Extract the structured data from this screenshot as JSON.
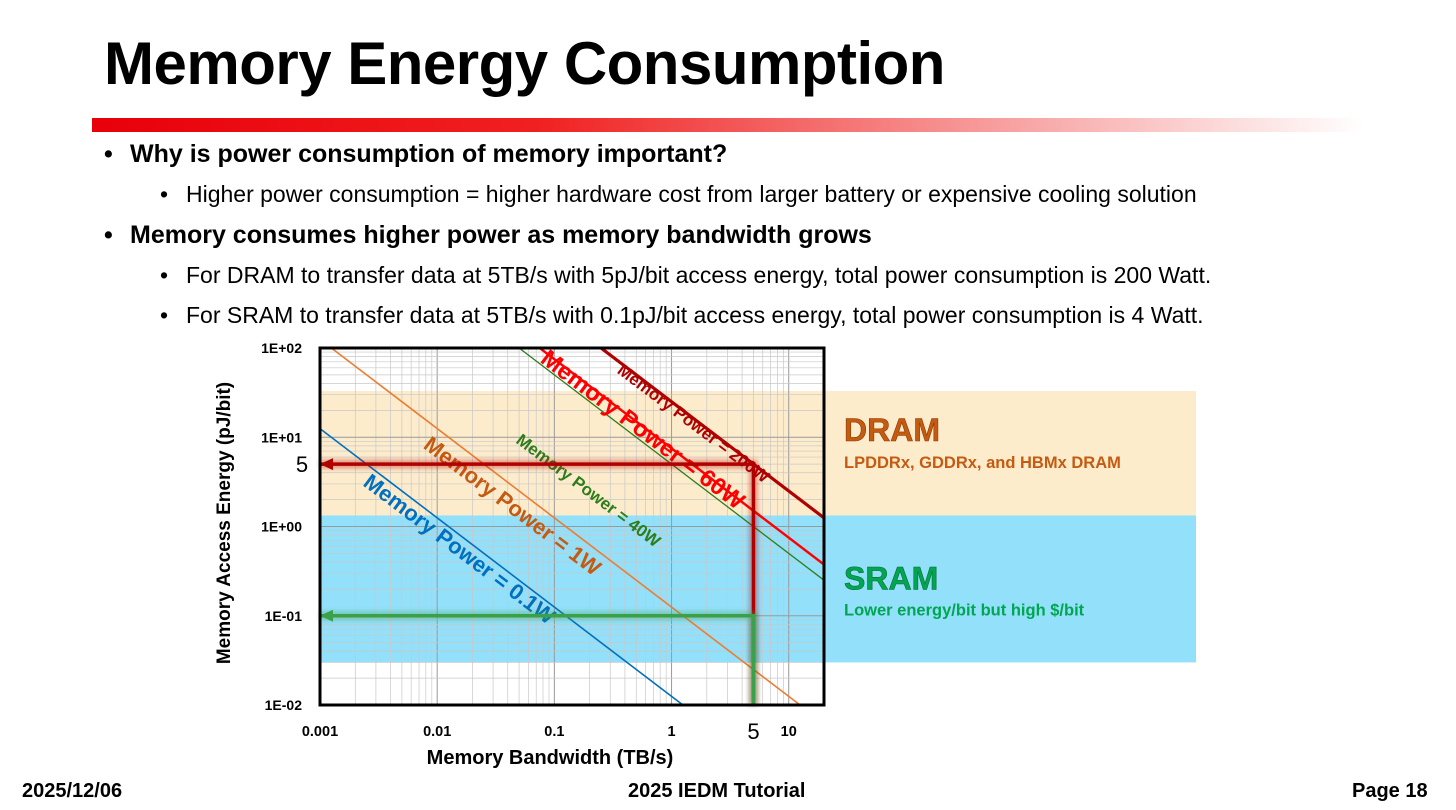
{
  "slide": {
    "title": "Memory Energy Consumption",
    "bullets": [
      {
        "text": "Why is power consumption of memory important?",
        "level": 1
      },
      {
        "text": "Higher power consumption = higher hardware cost from larger battery or expensive cooling solution",
        "level": 2
      },
      {
        "text": "Memory consumes higher power as memory bandwidth grows",
        "level": 1
      },
      {
        "text": "For DRAM to transfer data at 5TB/s with 5pJ/bit access energy, total power consumption is 200 Watt.",
        "level": 2
      },
      {
        "text": "For SRAM to transfer data at 5TB/s with 0.1pJ/bit access energy, total power consumption is 4 Watt.",
        "level": 2
      }
    ]
  },
  "footer": {
    "date": "2025/12/06",
    "event": "2025 IEDM Tutorial",
    "page": "Page 18"
  },
  "chart_data": {
    "type": "line",
    "x_scale": "log",
    "y_scale": "log",
    "xlabel": "Memory Bandwidth (TB/s)",
    "ylabel": "Memory Access Energy (pJ/bit)",
    "xlim": [
      0.001,
      20
    ],
    "ylim": [
      0.01,
      100
    ],
    "x_ticks": [
      {
        "value": 0.001,
        "label": "0.001"
      },
      {
        "value": 0.01,
        "label": "0.01"
      },
      {
        "value": 0.1,
        "label": "0.1"
      },
      {
        "value": 1,
        "label": "1"
      },
      {
        "value": 10,
        "label": "10"
      }
    ],
    "y_ticks": [
      {
        "value": 100,
        "label": "1E+02"
      },
      {
        "value": 10,
        "label": "1E+01"
      },
      {
        "value": 1,
        "label": "1E+00"
      },
      {
        "value": 0.1,
        "label": "1E-01"
      },
      {
        "value": 0.01,
        "label": "1E-02"
      }
    ],
    "grid": true,
    "series": [
      {
        "name": "Memory Power = 0.1W",
        "color": "#0070c0",
        "label_color": "#0070c0",
        "points": [
          [
            0.001,
            12.5
          ],
          [
            1.25,
            0.01
          ]
        ]
      },
      {
        "name": "Memory Power = 1W",
        "color": "#ed7d31",
        "label_color": "#c55a11",
        "points": [
          [
            0.001,
            125
          ],
          [
            12.5,
            0.01
          ]
        ]
      },
      {
        "name": "Memory Power = 40W",
        "color": "#2e7d1a",
        "label_color": "#2e7d1a",
        "points": [
          [
            0.05,
            100
          ],
          [
            20,
            0.25
          ]
        ]
      },
      {
        "name": "Memory Power = 60W",
        "color": "#ff0000",
        "label_color": "#ff0000",
        "points": [
          [
            0.075,
            100
          ],
          [
            20,
            0.375
          ]
        ]
      },
      {
        "name": "Memory Power = 200W",
        "color": "#b00000",
        "label_color": "#b00000",
        "points": [
          [
            0.25,
            100
          ],
          [
            20,
            1.25
          ]
        ]
      }
    ],
    "regions": [
      {
        "title": "DRAM",
        "subtitle": "LPDDRx, GDDRx, and HBMx DRAM",
        "y_range": [
          1.33,
          33
        ],
        "color": "#fdeccc",
        "title_color": "#c55a11"
      },
      {
        "title": "SRAM",
        "subtitle": "Lower energy/bit but high $/bit",
        "y_range": [
          0.03,
          1.33
        ],
        "color": "#92e0fa",
        "title_color": "#00a651"
      }
    ],
    "annotations": [
      {
        "label": "5",
        "axis": "x",
        "value": 5
      },
      {
        "label": "5",
        "axis": "y",
        "value": 5
      }
    ],
    "highlight_paths": [
      {
        "color": "#b00000",
        "points": [
          [
            5,
            0.01
          ],
          [
            5,
            5
          ],
          [
            0.001,
            5
          ]
        ]
      },
      {
        "color": "#3aa04a",
        "points": [
          [
            5,
            0.01
          ],
          [
            5,
            0.1
          ],
          [
            0.001,
            0.1
          ]
        ]
      }
    ]
  }
}
